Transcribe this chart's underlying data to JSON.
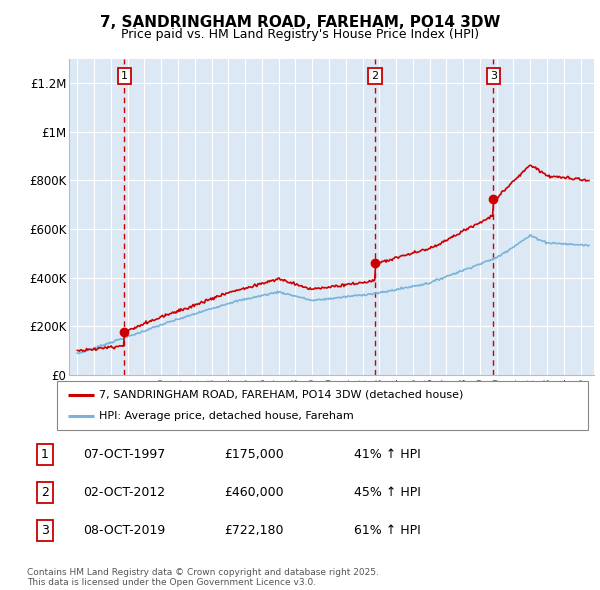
{
  "title": "7, SANDRINGHAM ROAD, FAREHAM, PO14 3DW",
  "subtitle": "Price paid vs. HM Land Registry's House Price Index (HPI)",
  "title_fontsize": 11,
  "subtitle_fontsize": 9,
  "background_color": "#dce9f5",
  "plot_bg_color": "#dce9f5",
  "ylim": [
    0,
    1300000
  ],
  "yticks": [
    0,
    200000,
    400000,
    600000,
    800000,
    1000000,
    1200000
  ],
  "ytick_labels": [
    "£0",
    "£200K",
    "£400K",
    "£600K",
    "£800K",
    "£1M",
    "£1.2M"
  ],
  "sale_dates": [
    1997.79,
    2012.75,
    2019.79
  ],
  "sale_prices": [
    175000,
    460000,
    722180
  ],
  "sale_labels": [
    "1",
    "2",
    "3"
  ],
  "hpi_line_color": "#7ab3d9",
  "price_line_color": "#cc0000",
  "vline_color": "#cc0000",
  "legend_entries": [
    "7, SANDRINGHAM ROAD, FAREHAM, PO14 3DW (detached house)",
    "HPI: Average price, detached house, Fareham"
  ],
  "table_rows": [
    [
      "1",
      "07-OCT-1997",
      "£175,000",
      "41% ↑ HPI"
    ],
    [
      "2",
      "02-OCT-2012",
      "£460,000",
      "45% ↑ HPI"
    ],
    [
      "3",
      "08-OCT-2019",
      "£722,180",
      "61% ↑ HPI"
    ]
  ],
  "footnote": "Contains HM Land Registry data © Crown copyright and database right 2025.\nThis data is licensed under the Open Government Licence v3.0.",
  "grid_color": "#ffffff",
  "xmin": 1994.5,
  "xmax": 2025.8
}
